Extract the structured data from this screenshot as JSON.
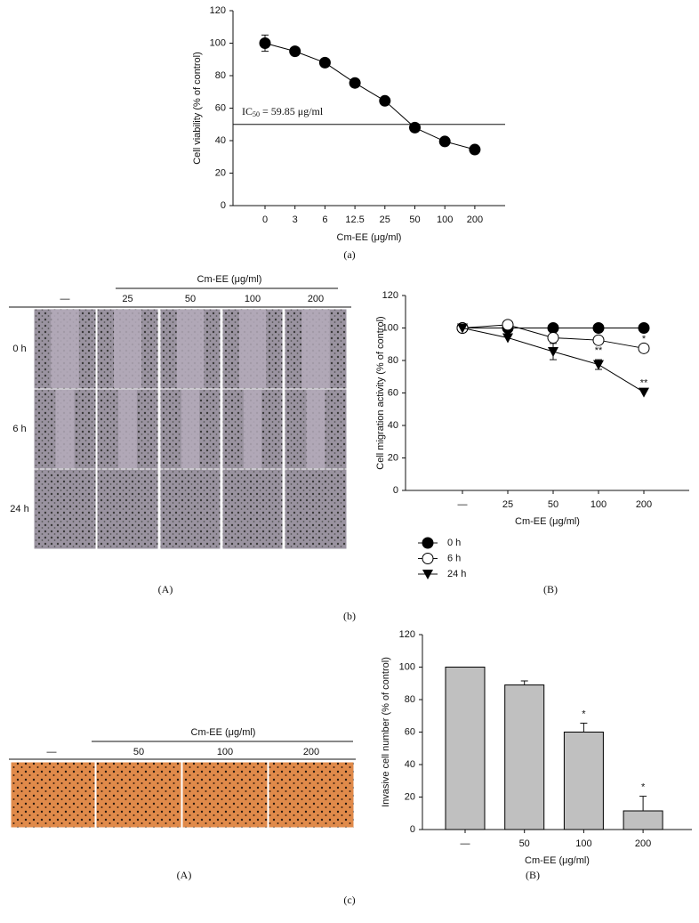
{
  "chart_data": [
    {
      "type": "line",
      "x_label": "Cm-EE (μg/ml)",
      "y_label": "Cell viability (% of control)",
      "categories": [
        "0",
        "3",
        "6",
        "12.5",
        "25",
        "50",
        "100",
        "200"
      ],
      "series": [
        {
          "color": "#000000",
          "marker": "filled-circle",
          "values": [
            100,
            95,
            88,
            75.5,
            64.5,
            48,
            39.5,
            34.5
          ],
          "errors": [
            5,
            null,
            null,
            null,
            null,
            null,
            null,
            null
          ]
        }
      ],
      "reference_line": 50,
      "annotation": {
        "text": "IC",
        "subscript": "50",
        "suffix": " = 59.85 μg/ml"
      },
      "ylim": [
        0,
        120
      ],
      "yticks": [
        0,
        20,
        40,
        60,
        80,
        100,
        120
      ]
    },
    {
      "type": "line",
      "x_label": "Cm-EE (μg/ml)",
      "y_label": "Cell migration activity (% of control)",
      "categories": [
        "—",
        "25",
        "50",
        "100",
        "200"
      ],
      "series": [
        {
          "name": "0 h",
          "color": "#000000",
          "marker": "filled-circle",
          "values": [
            100,
            100,
            100,
            100,
            100
          ],
          "errors": [
            null,
            null,
            null,
            null,
            null
          ],
          "significance": [
            null,
            null,
            null,
            null,
            null
          ]
        },
        {
          "name": "6 h",
          "color": "#000000",
          "marker": "open-circle",
          "values": [
            100,
            102,
            94,
            92.5,
            87.5
          ],
          "errors": [
            null,
            null,
            null,
            null,
            null
          ],
          "significance": [
            null,
            null,
            null,
            null,
            "*"
          ]
        },
        {
          "name": "24 h",
          "color": "#000000",
          "marker": "filled-triangle-down",
          "values": [
            100,
            94,
            85.5,
            77.5,
            60.5
          ],
          "errors": [
            null,
            null,
            5,
            3,
            null
          ],
          "significance": [
            null,
            null,
            null,
            "**",
            "**"
          ]
        }
      ],
      "legend": "below-left",
      "ylim": [
        0,
        120
      ],
      "yticks": [
        0,
        20,
        40,
        60,
        80,
        100,
        120
      ]
    },
    {
      "type": "bar",
      "x_label": "Cm-EE (μg/ml)",
      "y_label": "Invasive cell number (% of control)",
      "categories": [
        "—",
        "50",
        "100",
        "200"
      ],
      "series": [
        {
          "color": "#c0c0c0",
          "values": [
            100,
            89,
            60,
            11.5
          ],
          "errors": [
            null,
            2.5,
            5.5,
            9
          ],
          "significance": [
            null,
            null,
            "*",
            "*"
          ]
        }
      ],
      "ylim": [
        0,
        120
      ],
      "yticks": [
        0,
        20,
        40,
        60,
        80,
        100,
        120
      ]
    }
  ],
  "panel_b_photos": {
    "header": "Cm-EE (μg/ml)",
    "columns": [
      "—",
      "25",
      "50",
      "100",
      "200"
    ],
    "rows": [
      "0 h",
      "6 h",
      "24 h"
    ]
  },
  "panel_c_photos": {
    "header": "Cm-EE (μg/ml)",
    "columns": [
      "—",
      "50",
      "100",
      "200"
    ]
  },
  "labels": {
    "a": "(a)",
    "b_A": "(A)",
    "b_B": "(B)",
    "b": "(b)",
    "c_A": "(A)",
    "c_B": "(B)",
    "c": "(c)"
  }
}
